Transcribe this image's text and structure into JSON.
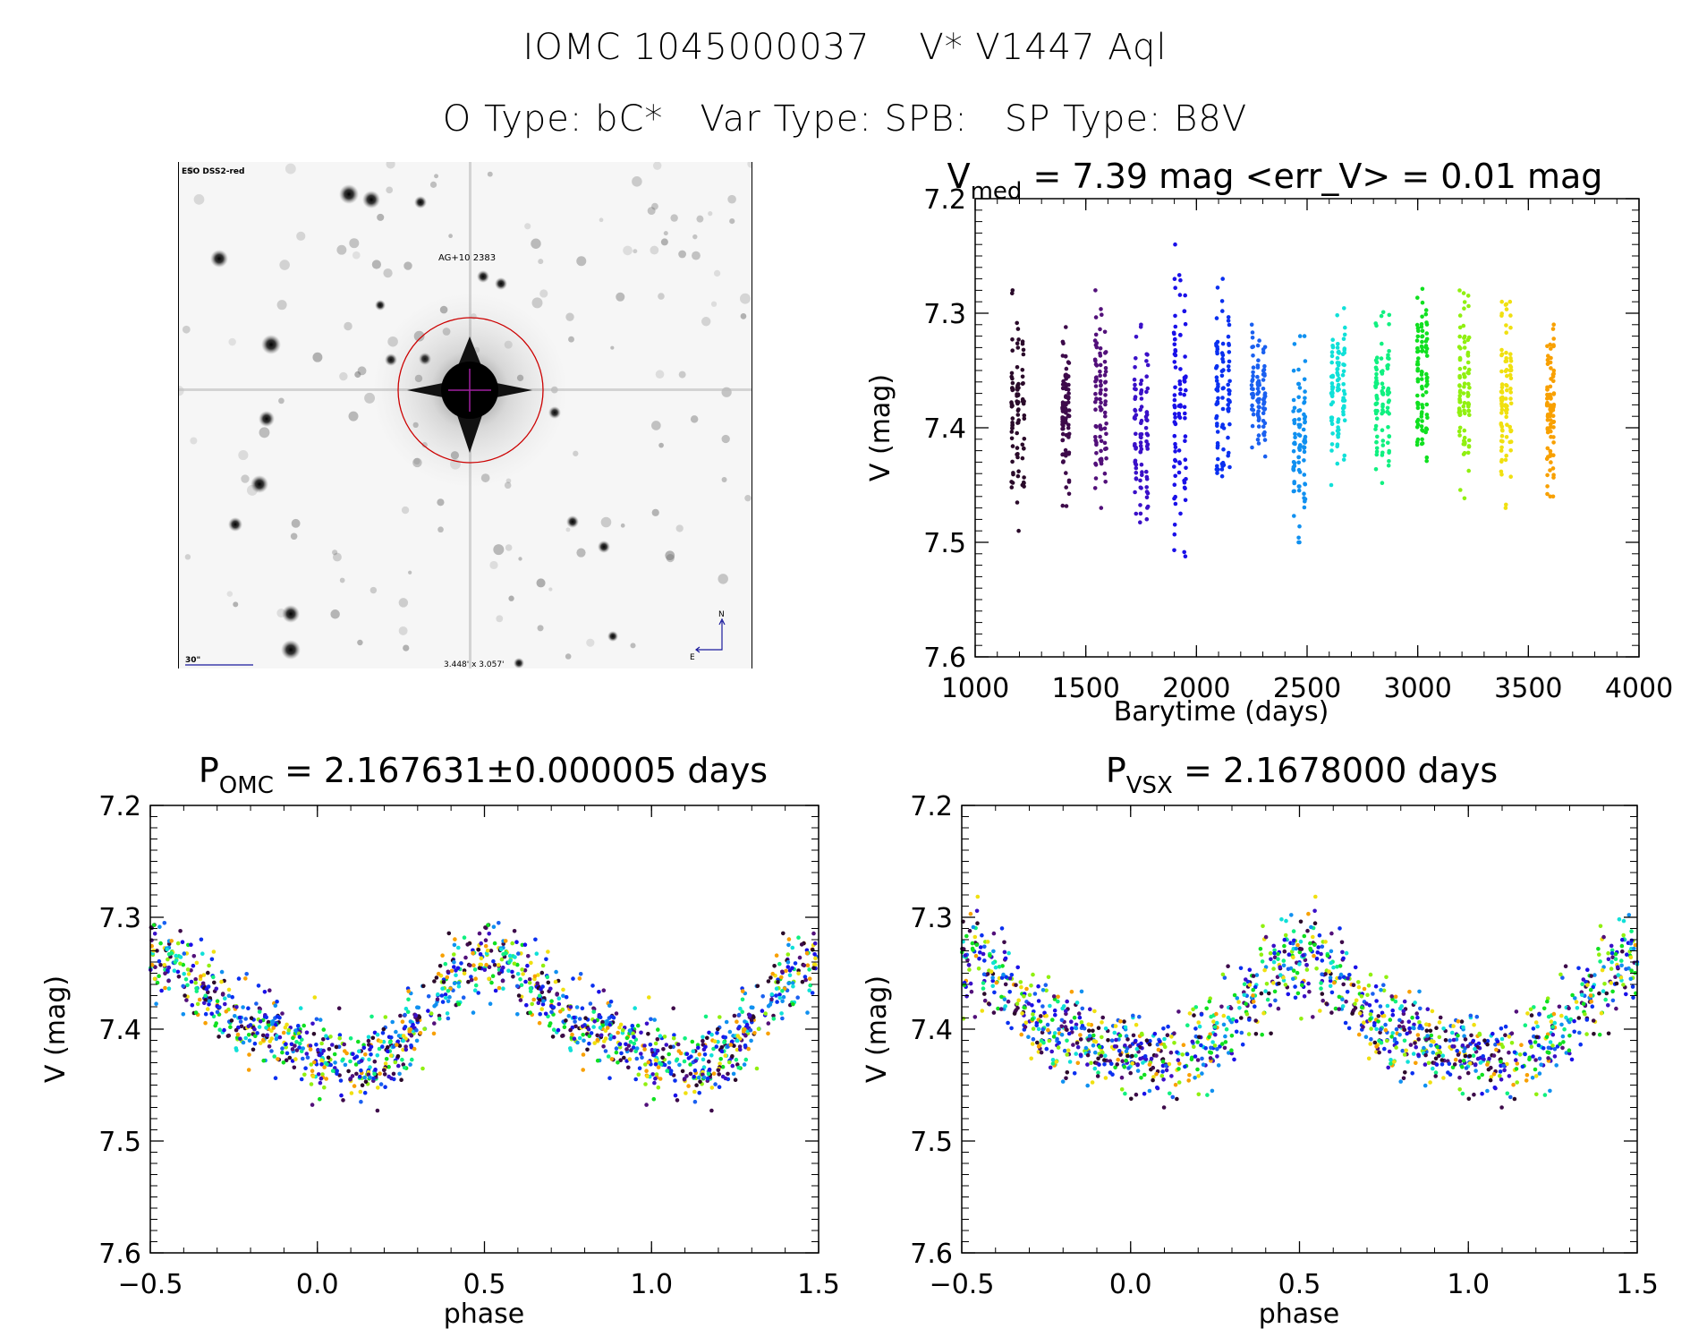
{
  "header": {
    "title_id": "IOMC 1045000037",
    "title_name": "V* V1447 Aql",
    "otype_label": "O Type: bC*",
    "vartype_label": "Var Type: SPB:",
    "sptype_label": "SP Type: B8V"
  },
  "sky_image": {
    "survey_label": "ESO DSS2-red",
    "object_label": "AG+10 2383",
    "scale_label": "30\"",
    "fov_label": "3.448' x 3.057'",
    "compass_north": "N",
    "compass_east": "E",
    "circle_color": "#cc0000",
    "crosshair_color": "#a020a0",
    "annotation_color": "#1a1a9c"
  },
  "chart_data": [
    {
      "id": "light-curve",
      "type": "scatter",
      "title_main": "V",
      "title_sub": "med",
      "title_rest": " = 7.39 mag <err_V> = 0.01 mag",
      "xlabel": "Barytime (days)",
      "ylabel": "V (mag)",
      "xlim": [
        1000,
        4000
      ],
      "ylim": [
        7.2,
        7.6
      ],
      "y_inverted": true,
      "xticks": [
        1000,
        1500,
        2000,
        2500,
        3000,
        3500,
        4000
      ],
      "xtick_labels": [
        "1000",
        "1500",
        "2000",
        "2500",
        "3000",
        "3500",
        "4000"
      ],
      "yticks": [
        7.2,
        7.3,
        7.4,
        7.5,
        7.6
      ],
      "ytick_labels": [
        "7.2",
        "7.3",
        "7.4",
        "7.5",
        "7.6"
      ],
      "grid": false,
      "seasons": [
        {
          "t0": 1155,
          "t1": 1230,
          "vmin": 7.28,
          "vmax": 7.49,
          "color": "#2a0a2a"
        },
        {
          "t0": 1390,
          "t1": 1430,
          "vmin": 7.31,
          "vmax": 7.47,
          "color": "#3d0a4a"
        },
        {
          "t0": 1535,
          "t1": 1600,
          "vmin": 7.28,
          "vmax": 7.47,
          "color": "#52107a"
        },
        {
          "t0": 1710,
          "t1": 1790,
          "vmin": 7.31,
          "vmax": 7.49,
          "color": "#3a10c8"
        },
        {
          "t0": 1890,
          "t1": 1960,
          "vmin": 7.24,
          "vmax": 7.53,
          "color": "#1a10e8"
        },
        {
          "t0": 2080,
          "t1": 2160,
          "vmin": 7.27,
          "vmax": 7.47,
          "color": "#0a30f0"
        },
        {
          "t0": 2240,
          "t1": 2320,
          "vmin": 7.31,
          "vmax": 7.43,
          "color": "#1a60f0"
        },
        {
          "t0": 2430,
          "t1": 2500,
          "vmin": 7.32,
          "vmax": 7.5,
          "color": "#1090f0"
        },
        {
          "t0": 2600,
          "t1": 2680,
          "vmin": 7.29,
          "vmax": 7.45,
          "color": "#10e0d8"
        },
        {
          "t0": 2800,
          "t1": 2880,
          "vmin": 7.28,
          "vmax": 7.46,
          "color": "#10f080"
        },
        {
          "t0": 2990,
          "t1": 3050,
          "vmin": 7.27,
          "vmax": 7.44,
          "color": "#10e020"
        },
        {
          "t0": 3180,
          "t1": 3240,
          "vmin": 7.28,
          "vmax": 7.47,
          "color": "#90f010"
        },
        {
          "t0": 3370,
          "t1": 3430,
          "vmin": 7.29,
          "vmax": 7.47,
          "color": "#f0e010"
        },
        {
          "t0": 3580,
          "t1": 3620,
          "vmin": 7.3,
          "vmax": 7.46,
          "color": "#f8a000"
        }
      ]
    },
    {
      "id": "phase-omc",
      "type": "scatter",
      "title_main": "P",
      "title_sub": "OMC",
      "title_rest": " = 2.167631±0.000005 days",
      "xlabel": "phase",
      "ylabel": "V (mag)",
      "xlim": [
        -0.5,
        1.5
      ],
      "ylim": [
        7.2,
        7.6
      ],
      "y_inverted": true,
      "xticks": [
        -0.5,
        0.0,
        0.5,
        1.0,
        1.5
      ],
      "xtick_labels": [
        "−0.5",
        "0.0",
        "0.5",
        "1.0",
        "1.5"
      ],
      "yticks": [
        7.2,
        7.3,
        7.4,
        7.5,
        7.6
      ],
      "ytick_labels": [
        "7.2",
        "7.3",
        "7.4",
        "7.5",
        "7.6"
      ],
      "grid": false,
      "model": {
        "mean_mag": 7.39,
        "amplitude": 0.045,
        "phase_of_max_brightness": 0.55,
        "scatter": 0.028
      }
    },
    {
      "id": "phase-vsx",
      "type": "scatter",
      "title_main": "P",
      "title_sub": "VSX",
      "title_rest": " = 2.1678000 days",
      "xlabel": "phase",
      "ylabel": "V (mag)",
      "xlim": [
        -0.5,
        1.5
      ],
      "ylim": [
        7.2,
        7.6
      ],
      "y_inverted": true,
      "xticks": [
        -0.5,
        0.0,
        0.5,
        1.0,
        1.5
      ],
      "xtick_labels": [
        "−0.5",
        "0.0",
        "0.5",
        "1.0",
        "1.5"
      ],
      "yticks": [
        7.2,
        7.3,
        7.4,
        7.5,
        7.6
      ],
      "ytick_labels": [
        "7.2",
        "7.3",
        "7.4",
        "7.5",
        "7.6"
      ],
      "grid": false,
      "model": {
        "mean_mag": 7.39,
        "amplitude": 0.042,
        "phase_of_max_brightness": 0.52,
        "scatter": 0.032
      }
    }
  ]
}
